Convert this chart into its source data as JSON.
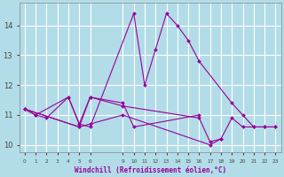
{
  "xlabel": "Windchill (Refroidissement éolien,°C)",
  "background_color": "#b2dde8",
  "grid_color": "#ffffff",
  "line_color": "#990099",
  "xlim": [
    -0.5,
    23.5
  ],
  "ylim": [
    9.75,
    14.75
  ],
  "yticks": [
    10,
    11,
    12,
    13,
    14
  ],
  "xtick_positions": [
    0,
    1,
    2,
    3,
    4,
    5,
    6,
    9,
    10,
    11,
    12,
    13,
    14,
    15,
    16,
    17,
    18,
    19,
    20,
    21,
    22,
    23
  ],
  "xtick_labels": [
    "0",
    "1",
    "2",
    "3",
    "4",
    "5",
    "6",
    "9",
    "10",
    "11",
    "12",
    "13",
    "14",
    "15",
    "16",
    "17",
    "18",
    "19",
    "20",
    "21",
    "22",
    "23"
  ],
  "series": [
    {
      "x": [
        0,
        1,
        4,
        5,
        6,
        10,
        11,
        12,
        13,
        14,
        15,
        16,
        19,
        20,
        21,
        22,
        23
      ],
      "y": [
        11.2,
        11.0,
        11.6,
        10.7,
        10.6,
        14.4,
        12.0,
        13.2,
        14.4,
        14.0,
        13.5,
        12.8,
        11.4,
        11.0,
        10.6,
        10.6,
        10.6
      ]
    },
    {
      "x": [
        0,
        1,
        2,
        4,
        5,
        6,
        9,
        10,
        16
      ],
      "y": [
        11.2,
        11.0,
        10.9,
        11.6,
        10.7,
        11.6,
        11.4,
        10.6,
        11.0
      ]
    },
    {
      "x": [
        0,
        5,
        6,
        9,
        16,
        17,
        18,
        19,
        20,
        21,
        22,
        23
      ],
      "y": [
        11.2,
        10.6,
        11.6,
        11.3,
        10.9,
        10.1,
        10.2,
        10.9,
        10.6,
        10.6,
        10.6,
        10.6
      ]
    },
    {
      "x": [
        0,
        5,
        6,
        9,
        17,
        18
      ],
      "y": [
        11.2,
        10.6,
        10.7,
        11.0,
        10.0,
        10.2
      ]
    }
  ]
}
